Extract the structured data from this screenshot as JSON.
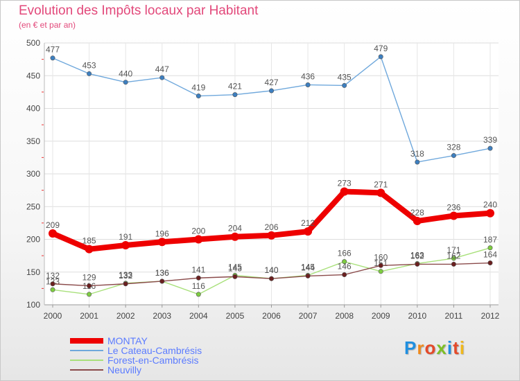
{
  "title": "Evolution des Impôts locaux par Habitant",
  "subtitle": "(en € et par an)",
  "logo": {
    "letters": [
      "P",
      "r",
      "o",
      "x",
      "i",
      "t",
      "i"
    ],
    "colors": [
      "#1f8fe0",
      "#f08a1c",
      "#e44a2a",
      "#7dbf26",
      "#1f8fe0",
      "#e44a2a",
      "#f0b81c"
    ]
  },
  "chart_data": {
    "type": "line",
    "title": "Evolution des Impôts locaux par Habitant",
    "subtitle": "(en € et par an)",
    "xlabel": "",
    "ylabel": "",
    "categories": [
      "2000",
      "2001",
      "2002",
      "2003",
      "2004",
      "2005",
      "2006",
      "2007",
      "2008",
      "2009",
      "2010",
      "2011",
      "2012"
    ],
    "ylim": [
      100,
      500
    ],
    "yticks": [
      100,
      150,
      200,
      250,
      300,
      350,
      400,
      450,
      500
    ],
    "legend_position": "bottom-left",
    "series": [
      {
        "name": "Le Cateau-Cambrésis",
        "color": "#6fa8dc",
        "marker": "#3d7fc0",
        "values": [
          477,
          453,
          440,
          447,
          419,
          421,
          427,
          436,
          435,
          479,
          318,
          328,
          339
        ],
        "labels": [
          "477",
          "453",
          "440",
          "447",
          "419",
          "421",
          "427",
          "436",
          "435",
          "479",
          "318",
          "328",
          "339"
        ]
      },
      {
        "name": "Forest-en-Cambrésis",
        "color": "#a8e07a",
        "marker": "#7dcc40",
        "values": [
          123,
          116,
          133,
          136,
          116,
          145,
          140,
          145,
          166,
          151,
          163,
          171,
          187
        ],
        "labels": [
          "123",
          "116",
          "133",
          "136",
          "116",
          "145",
          "140",
          "145",
          "166",
          "151",
          "163",
          "171",
          "187"
        ]
      },
      {
        "name": "Neuvilly",
        "color": "#8a4a4a",
        "marker": "#6b1f1f",
        "values": [
          132,
          129,
          132,
          136,
          141,
          143,
          140,
          144,
          146,
          160,
          162,
          162,
          164
        ],
        "labels": [
          "132",
          "129",
          "132",
          "136",
          "141",
          "143",
          "140",
          "144",
          "146",
          "160",
          "162",
          "162",
          "164"
        ]
      },
      {
        "name": "MONTAY",
        "color": "#ee0000",
        "marker": "#ee0000",
        "values": [
          209,
          185,
          191,
          196,
          200,
          204,
          206,
          212,
          273,
          271,
          228,
          236,
          240
        ],
        "labels": [
          "209",
          "185",
          "191",
          "196",
          "200",
          "204",
          "206",
          "212",
          "273",
          "271",
          "228",
          "236",
          "240"
        ]
      }
    ],
    "legend": [
      {
        "name": "MONTAY",
        "color": "#ee0000",
        "thick": true
      },
      {
        "name": "Le Cateau-Cambrésis",
        "color": "#6fa8dc",
        "thick": false
      },
      {
        "name": "Forest-en-Cambrésis",
        "color": "#a8e07a",
        "thick": false
      },
      {
        "name": "Neuvilly",
        "color": "#8a4a4a",
        "thick": false
      }
    ]
  }
}
